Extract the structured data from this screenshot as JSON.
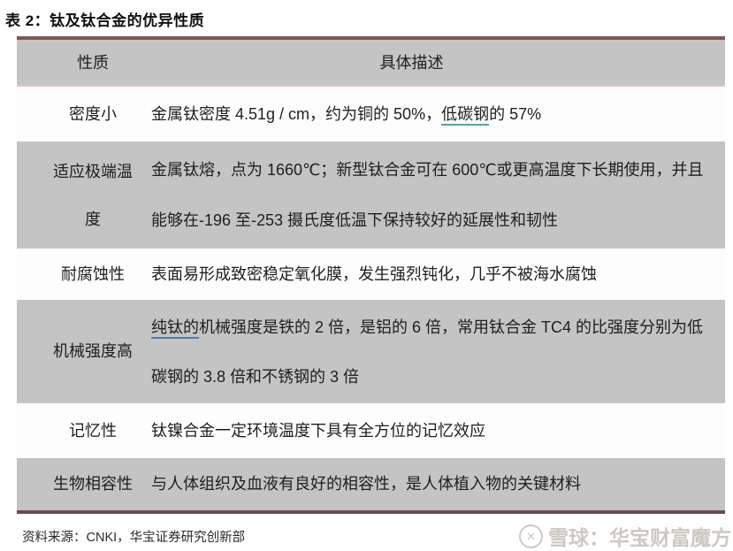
{
  "page": {
    "title": "表 2：钛及钛合金的优异性质",
    "source": "资料来源：CNKI，华宝证券研究创新部",
    "watermark": {
      "logo_icon": "xueqiu-circle-logo",
      "logo_glyph": "✕",
      "brand": "雪球：华宝财富魔方"
    }
  },
  "table": {
    "header": {
      "property": "性质",
      "description": "具体描述"
    },
    "rows": [
      {
        "property": "密度小",
        "desc_pre": "金属钛密度 4.51g / cm，约为铜的 50%，",
        "desc_term": "低碳钢",
        "desc_post": "的 57%"
      },
      {
        "property": "适应极端温度",
        "desc": "金属钛熔，点为 1660℃；新型钛合金可在 600℃或更高温度下长期使用，并且能够在-196 至-253 摄氏度低温下保持较好的延展性和韧性"
      },
      {
        "property": "耐腐蚀性",
        "desc": "表面易形成致密稳定氧化膜，发生强烈钝化，几乎不被海水腐蚀"
      },
      {
        "property": "机械强度高",
        "desc_term": "纯钛的",
        "desc_post": "机械强度是铁的 2 倍，是铝的 6 倍，常用钛合金 TC4 的比强度分别为低碳钢的 3.8 倍和不锈钢的 3 倍"
      },
      {
        "property": "记忆性",
        "desc": "钛镍合金一定环境温度下具有全方位的记忆效应"
      },
      {
        "property": "生物相容性",
        "desc": "与人体组织及血液有良好的相容性，是人体植入物的关键材料"
      }
    ],
    "colors": {
      "top_border": "#7b585c",
      "bottom_border": "#6b4b4f",
      "row_gray": "#c5c4c4",
      "row_white": "#fdfdfd",
      "header_separator_pink": "#e3c2c2",
      "term_underline_teal": "#5f9ea8",
      "term_underline_blue": "#4f79b1"
    }
  }
}
